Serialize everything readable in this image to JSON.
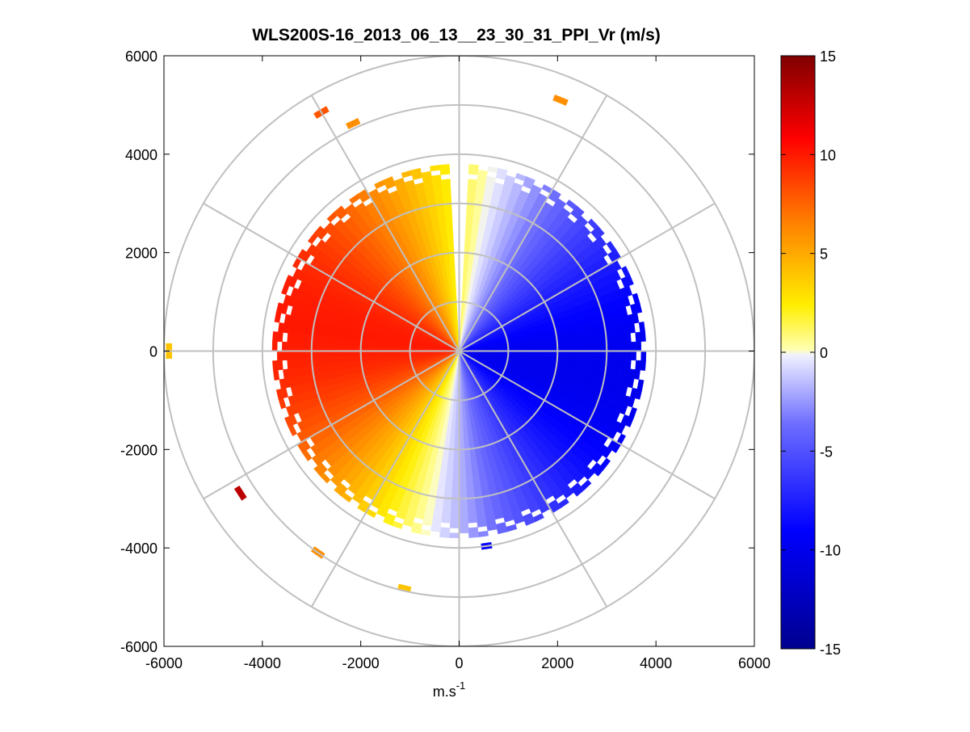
{
  "chart_data": {
    "type": "heatmap",
    "subtype": "polar-ppi",
    "title": "WLS200S-16_2013_06_13__23_30_31_PPI_Vr (m/s)",
    "xlabel": "m.s",
    "xlabel_superscript": "-1",
    "ylabel": "",
    "xlim": [
      -6000,
      6000
    ],
    "ylim": [
      -6000,
      6000
    ],
    "xticks": [
      "-6000",
      "-4000",
      "-2000",
      "0",
      "2000",
      "4000",
      "6000"
    ],
    "yticks": [
      "6000",
      "4000",
      "2000",
      "0",
      "-2000",
      "-4000",
      "-6000"
    ],
    "grid": true,
    "range_rings_m": [
      1000,
      2000,
      3000,
      4000,
      5000,
      6000
    ],
    "azimuth_spokes_deg": [
      0,
      30,
      60,
      90,
      120,
      150,
      180,
      210,
      240,
      270,
      300,
      330
    ],
    "colorbar": {
      "min": -15,
      "max": 15,
      "ticks": [
        "15",
        "10",
        "5",
        "0",
        "-5",
        "-10",
        "-15"
      ],
      "colors_low_to_high": [
        "#00008f",
        "#0000ff",
        "#6e6eff",
        "#f0f0ff",
        "#ffffb0",
        "#ffee00",
        "#ff7f00",
        "#ff0000",
        "#800000"
      ]
    },
    "wind_field": {
      "description_value_model": "Vr = -amplitude * sin(azimuth - direction)",
      "amplitude_mps": 10,
      "direction_deg": 10,
      "main_range_m": 3800,
      "gap_azimuth_deg": [
        357,
        3
      ]
    },
    "far_returns": [
      {
        "azimuth_deg": 330,
        "range_m": 5600,
        "value": 8
      },
      {
        "azimuth_deg": 335,
        "range_m": 5100,
        "value": 6
      },
      {
        "azimuth_deg": 22,
        "range_m": 5500,
        "value": 6
      },
      {
        "azimuth_deg": 270,
        "range_m": 5900,
        "value": 4
      },
      {
        "azimuth_deg": 237,
        "range_m": 5300,
        "value": 13
      },
      {
        "azimuth_deg": 215,
        "range_m": 5000,
        "value": 6
      },
      {
        "azimuth_deg": 193,
        "range_m": 4950,
        "value": 4
      },
      {
        "azimuth_deg": 172,
        "range_m": 4000,
        "value": -9
      }
    ]
  }
}
